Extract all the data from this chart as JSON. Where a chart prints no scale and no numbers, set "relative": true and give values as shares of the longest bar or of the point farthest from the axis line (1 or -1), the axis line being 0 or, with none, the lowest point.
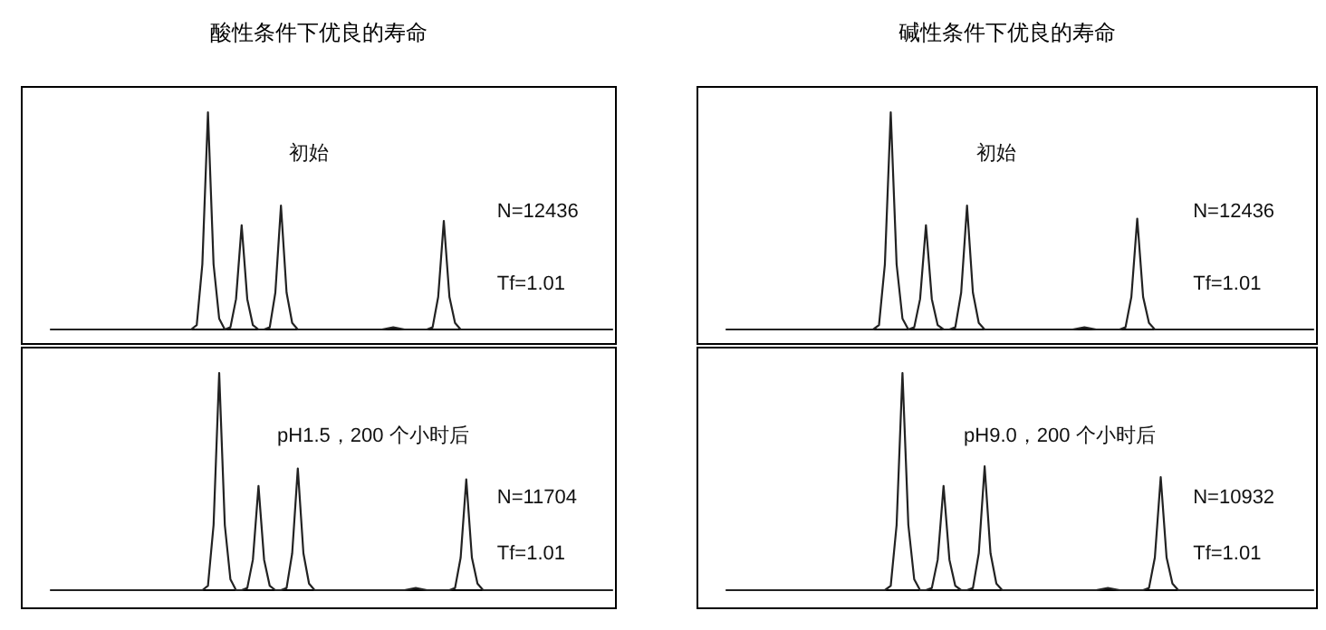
{
  "chart_data": [
    {
      "type": "line",
      "title": "酸性条件下优良的寿命",
      "relative": true,
      "annotations": [
        "初始",
        "N=12436",
        "Tf=1.01"
      ],
      "categories": [
        null,
        null,
        null,
        null,
        null,
        null,
        null,
        null,
        null,
        null,
        null,
        null,
        null,
        null,
        null,
        null,
        null,
        null,
        null,
        null,
        null,
        null,
        null,
        null,
        null,
        null,
        null,
        null,
        null,
        null,
        null,
        null,
        null,
        null,
        null,
        null,
        null,
        null,
        null,
        null,
        null,
        null,
        null,
        null,
        null,
        null,
        null,
        null,
        null,
        null,
        null,
        null,
        null,
        null,
        null,
        null,
        null,
        null,
        null,
        null,
        null,
        null,
        null,
        null,
        null,
        null,
        null,
        null,
        null,
        null,
        null,
        null,
        null,
        null,
        null,
        null,
        null,
        null,
        null,
        null,
        null,
        null,
        null,
        null,
        null,
        null,
        null,
        null,
        null,
        null,
        null,
        null,
        null,
        null,
        null,
        null,
        null,
        null,
        null,
        null,
        null
      ],
      "series": [
        {
          "color": "#222222",
          "values": [
            0,
            0,
            0,
            0,
            0,
            0,
            0,
            0,
            0,
            0,
            0,
            0,
            0,
            0,
            0,
            0,
            0,
            0,
            0,
            0,
            0,
            0,
            0,
            0,
            0,
            0,
            0.02,
            0.3,
            1,
            0.3,
            0.05,
            0,
            0.01,
            0.14,
            0.48,
            0.14,
            0.02,
            0,
            0,
            0.01,
            0.17,
            0.57,
            0.17,
            0.03,
            0,
            0,
            0,
            0,
            0,
            0,
            0,
            0,
            0,
            0,
            0,
            0,
            0,
            0,
            0,
            0,
            0.005,
            0.01,
            0.005,
            0,
            0,
            0,
            0,
            0,
            0.01,
            0.15,
            0.5,
            0.15,
            0.03,
            0,
            0,
            0,
            0,
            0,
            0,
            0,
            0,
            0,
            0,
            0,
            0,
            0,
            0,
            0,
            0,
            0,
            0,
            0,
            0,
            0,
            0,
            0,
            0,
            0,
            0,
            0,
            0
          ]
        }
      ]
    },
    {
      "type": "line",
      "title": "碱性条件下优良的寿命",
      "relative": true,
      "annotations": [
        "初始",
        "N=12436",
        "Tf=1.01"
      ],
      "categories": [
        null,
        null,
        null,
        null,
        null,
        null,
        null,
        null,
        null,
        null,
        null,
        null,
        null,
        null,
        null,
        null,
        null,
        null,
        null,
        null,
        null,
        null,
        null,
        null,
        null,
        null,
        null,
        null,
        null,
        null,
        null,
        null,
        null,
        null,
        null,
        null,
        null,
        null,
        null,
        null,
        null,
        null,
        null,
        null,
        null,
        null,
        null,
        null,
        null,
        null,
        null,
        null,
        null,
        null,
        null,
        null,
        null,
        null,
        null,
        null,
        null,
        null,
        null,
        null,
        null,
        null,
        null,
        null,
        null,
        null,
        null,
        null,
        null,
        null,
        null,
        null,
        null,
        null,
        null,
        null,
        null,
        null,
        null,
        null,
        null,
        null,
        null,
        null,
        null,
        null,
        null,
        null,
        null,
        null,
        null,
        null,
        null,
        null,
        null,
        null,
        null
      ],
      "series": [
        {
          "color": "#222222",
          "values": [
            0,
            0,
            0,
            0,
            0,
            0,
            0,
            0,
            0,
            0,
            0,
            0,
            0,
            0,
            0,
            0,
            0,
            0,
            0,
            0,
            0,
            0,
            0,
            0,
            0,
            0,
            0.02,
            0.3,
            1,
            0.3,
            0.05,
            0,
            0.01,
            0.14,
            0.48,
            0.14,
            0.02,
            0,
            0,
            0.01,
            0.17,
            0.57,
            0.17,
            0.03,
            0,
            0,
            0,
            0,
            0,
            0,
            0,
            0,
            0,
            0,
            0,
            0,
            0,
            0,
            0,
            0,
            0.005,
            0.01,
            0.005,
            0,
            0,
            0,
            0,
            0,
            0.01,
            0.15,
            0.51,
            0.15,
            0.03,
            0,
            0,
            0,
            0,
            0,
            0,
            0,
            0,
            0,
            0,
            0,
            0,
            0,
            0,
            0,
            0,
            0,
            0,
            0,
            0,
            0,
            0,
            0,
            0,
            0,
            0,
            0,
            0
          ]
        }
      ]
    },
    {
      "type": "line",
      "relative": true,
      "annotations": [
        "pH1.5，200 个小时后",
        "N=11704",
        "Tf=1.01"
      ],
      "categories": [
        null,
        null,
        null,
        null,
        null,
        null,
        null,
        null,
        null,
        null,
        null,
        null,
        null,
        null,
        null,
        null,
        null,
        null,
        null,
        null,
        null,
        null,
        null,
        null,
        null,
        null,
        null,
        null,
        null,
        null,
        null,
        null,
        null,
        null,
        null,
        null,
        null,
        null,
        null,
        null,
        null,
        null,
        null,
        null,
        null,
        null,
        null,
        null,
        null,
        null,
        null,
        null,
        null,
        null,
        null,
        null,
        null,
        null,
        null,
        null,
        null,
        null,
        null,
        null,
        null,
        null,
        null,
        null,
        null,
        null,
        null,
        null,
        null,
        null,
        null,
        null,
        null,
        null,
        null,
        null,
        null,
        null,
        null,
        null,
        null,
        null,
        null,
        null,
        null,
        null,
        null,
        null,
        null,
        null,
        null,
        null,
        null,
        null,
        null,
        null,
        null
      ],
      "series": [
        {
          "color": "#222222",
          "values": [
            0,
            0,
            0,
            0,
            0,
            0,
            0,
            0,
            0,
            0,
            0,
            0,
            0,
            0,
            0,
            0,
            0,
            0,
            0,
            0,
            0,
            0,
            0,
            0,
            0,
            0,
            0,
            0,
            0.02,
            0.3,
            1,
            0.3,
            0.05,
            0,
            0,
            0.01,
            0.14,
            0.48,
            0.14,
            0.02,
            0,
            0,
            0.01,
            0.17,
            0.56,
            0.17,
            0.03,
            0,
            0,
            0,
            0,
            0,
            0,
            0,
            0,
            0,
            0,
            0,
            0,
            0,
            0,
            0,
            0,
            0,
            0.005,
            0.01,
            0.005,
            0,
            0,
            0,
            0,
            0,
            0.01,
            0.15,
            0.51,
            0.15,
            0.03,
            0,
            0,
            0,
            0,
            0,
            0,
            0,
            0,
            0,
            0,
            0,
            0,
            0,
            0,
            0,
            0,
            0,
            0,
            0,
            0,
            0,
            0,
            0,
            0
          ]
        }
      ]
    },
    {
      "type": "line",
      "relative": true,
      "annotations": [
        "pH9.0，200 个小时后",
        "N=10932",
        "Tf=1.01"
      ],
      "categories": [
        null,
        null,
        null,
        null,
        null,
        null,
        null,
        null,
        null,
        null,
        null,
        null,
        null,
        null,
        null,
        null,
        null,
        null,
        null,
        null,
        null,
        null,
        null,
        null,
        null,
        null,
        null,
        null,
        null,
        null,
        null,
        null,
        null,
        null,
        null,
        null,
        null,
        null,
        null,
        null,
        null,
        null,
        null,
        null,
        null,
        null,
        null,
        null,
        null,
        null,
        null,
        null,
        null,
        null,
        null,
        null,
        null,
        null,
        null,
        null,
        null,
        null,
        null,
        null,
        null,
        null,
        null,
        null,
        null,
        null,
        null,
        null,
        null,
        null,
        null,
        null,
        null,
        null,
        null,
        null,
        null,
        null,
        null,
        null,
        null,
        null,
        null,
        null,
        null,
        null,
        null,
        null,
        null,
        null,
        null,
        null,
        null,
        null,
        null,
        null,
        null
      ],
      "series": [
        {
          "color": "#222222",
          "values": [
            0,
            0,
            0,
            0,
            0,
            0,
            0,
            0,
            0,
            0,
            0,
            0,
            0,
            0,
            0,
            0,
            0,
            0,
            0,
            0,
            0,
            0,
            0,
            0,
            0,
            0,
            0,
            0,
            0.02,
            0.3,
            1,
            0.3,
            0.05,
            0,
            0,
            0.01,
            0.14,
            0.48,
            0.14,
            0.02,
            0,
            0,
            0.01,
            0.17,
            0.57,
            0.17,
            0.03,
            0,
            0,
            0,
            0,
            0,
            0,
            0,
            0,
            0,
            0,
            0,
            0,
            0,
            0,
            0,
            0,
            0,
            0.005,
            0.01,
            0.005,
            0,
            0,
            0,
            0,
            0,
            0.01,
            0.15,
            0.52,
            0.15,
            0.03,
            0,
            0,
            0,
            0,
            0,
            0,
            0,
            0,
            0,
            0,
            0,
            0,
            0,
            0,
            0,
            0,
            0,
            0,
            0,
            0,
            0,
            0,
            0,
            0
          ]
        }
      ]
    }
  ]
}
